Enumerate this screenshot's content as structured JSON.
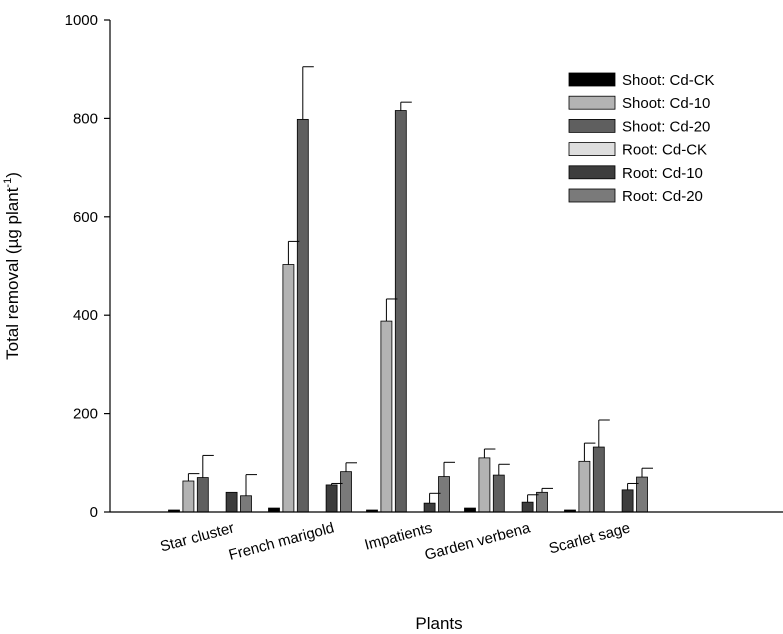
{
  "chart_data": {
    "type": "bar",
    "xlabel": "Plants",
    "ylabel_main": "Total removal (µg plant",
    "ylabel_sup": "-1",
    "ylabel_close": ")",
    "ylim": [
      0,
      1000
    ],
    "yticks": [
      0,
      200,
      400,
      600,
      800,
      1000
    ],
    "grid": false,
    "legend_position": "top-right",
    "categories": [
      "Star cluster",
      "French marigold",
      "Impatients",
      "Garden verbena",
      "Scarlet sage"
    ],
    "series": [
      {
        "name": "Shoot: Cd-CK",
        "color": "#000000",
        "values": [
          4,
          8,
          4,
          8,
          4
        ],
        "errors": [
          0,
          0,
          0,
          0,
          0
        ]
      },
      {
        "name": "Shoot: Cd-10",
        "color": "#b3b3b3",
        "values": [
          63,
          503,
          388,
          110,
          103
        ],
        "errors": [
          15,
          47,
          45,
          18,
          37
        ]
      },
      {
        "name": "Shoot: Cd-20",
        "color": "#5f5f5f",
        "values": [
          70,
          798,
          816,
          75,
          132
        ],
        "errors": [
          45,
          107,
          17,
          22,
          55
        ]
      },
      {
        "name": "Root: Cd-CK",
        "color": "#dedede",
        "values": [
          0,
          0,
          0,
          0,
          0
        ],
        "errors": [
          0,
          0,
          0,
          0,
          0
        ]
      },
      {
        "name": "Root: Cd-10",
        "color": "#3d3d3d",
        "values": [
          40,
          55,
          18,
          20,
          45
        ],
        "errors": [
          0,
          3,
          20,
          15,
          13
        ]
      },
      {
        "name": "Root: Cd-20",
        "color": "#7a7a7a",
        "values": [
          33,
          82,
          72,
          40,
          71
        ],
        "errors": [
          43,
          18,
          29,
          8,
          18
        ]
      }
    ]
  }
}
